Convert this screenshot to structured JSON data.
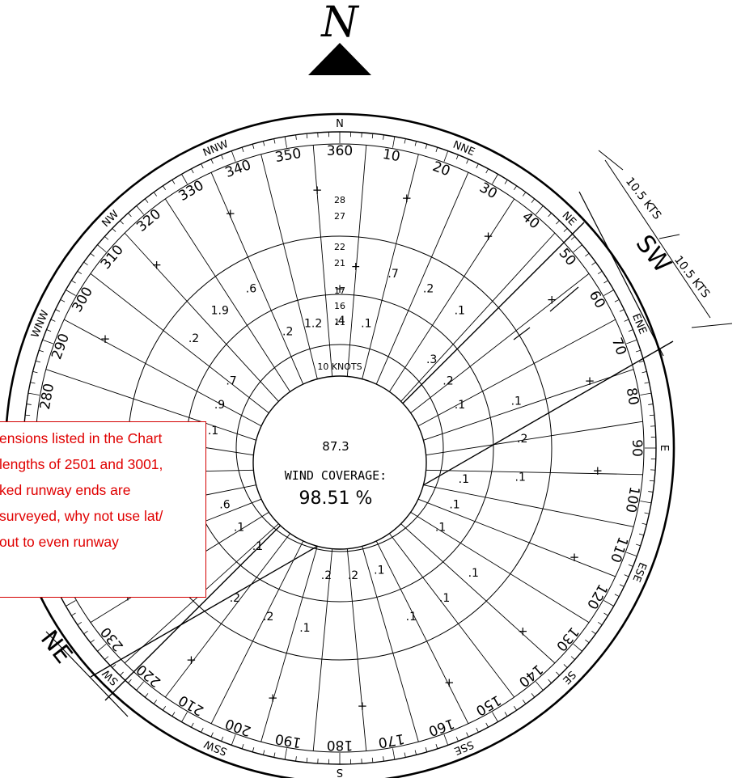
{
  "north_indicator": {
    "letter": "N"
  },
  "compass_points": [
    "N",
    "NNE",
    "NE",
    "ENE",
    "E",
    "ESE",
    "SE",
    "SSE",
    "S",
    "SSW",
    "SW",
    "WNW",
    "NW",
    "NNW"
  ],
  "degree_labels": [
    "360",
    "10",
    "20",
    "30",
    "40",
    "50",
    "60",
    "70",
    "80",
    "90",
    "100",
    "110",
    "120",
    "130",
    "140",
    "150",
    "160",
    "170",
    "180",
    "190",
    "200",
    "210",
    "220",
    "230",
    "280",
    "290",
    "300",
    "310",
    "320",
    "330",
    "340",
    "350"
  ],
  "speed_rings": [
    "10 KNOTS",
    "11",
    "16",
    "17",
    "21",
    "22",
    "27",
    "28"
  ],
  "ring_plus": "+",
  "center": {
    "value": "87.3",
    "label": "WIND COVERAGE:",
    "coverage": "98.51 %"
  },
  "runway": {
    "end_sw": "SW",
    "end_ne": "NE",
    "dim_top": "10.5 KTS",
    "dim_bottom": "10.5 KTS"
  },
  "cell_values": [
    ".1",
    ".1",
    ".1",
    ".1",
    ".1",
    ".1",
    ".2",
    ".2",
    ".6",
    ".8",
    ".7",
    ".6",
    ".4",
    ".2",
    ".2",
    ".2",
    ".1",
    ".1",
    ".2",
    ".2",
    ".1",
    ".2",
    ".9",
    "1.9",
    "1.2",
    ".7",
    ".3",
    ".1",
    ".1",
    ".1",
    ".1",
    ".1",
    ".1",
    ".1",
    ".1",
    ".2",
    ".2",
    "+"
  ],
  "note": {
    "lines": [
      "ensions listed in the Chart",
      " lengths of 2501 and 3001,",
      "ked runway ends are",
      " surveyed, why not use lat/",
      " out to even runway"
    ]
  }
}
